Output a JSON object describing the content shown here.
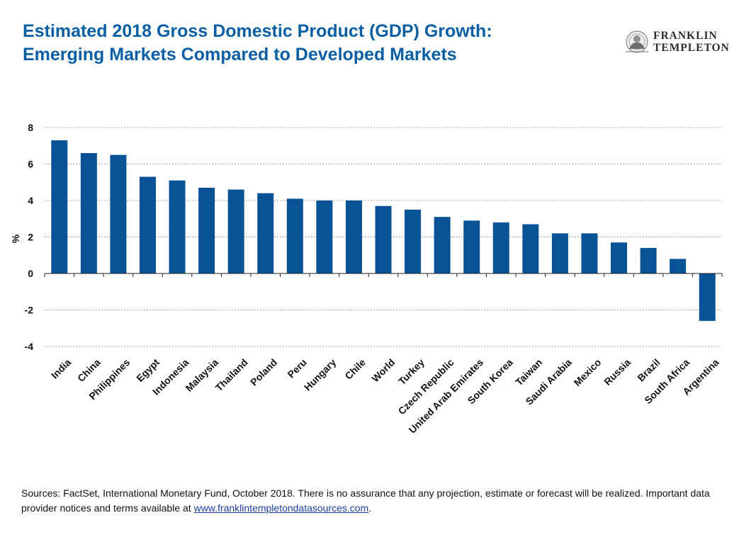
{
  "header": {
    "title_line1": "Estimated 2018 Gross Domestic Product (GDP) Growth:",
    "title_line2": "Emerging Markets Compared to Developed Markets",
    "logo_line1": "FRANKLIN",
    "logo_line2": "TEMPLETON"
  },
  "colors": {
    "title": "#0a5ea3",
    "bar": "#0a5296",
    "grid": "#808080",
    "link": "#1f3f9b"
  },
  "chart_data": {
    "type": "bar",
    "title": "",
    "xlabel": "",
    "ylabel": "%",
    "ylim": [
      -4,
      8
    ],
    "yticks": [
      8,
      6,
      4,
      2,
      0,
      -2,
      -4
    ],
    "grid": true,
    "legend": "none",
    "categories": [
      "India",
      "China",
      "Philippines",
      "Egypt",
      "Indonesia",
      "Malaysia",
      "Thailand",
      "Poland",
      "Peru",
      "Hungary",
      "Chile",
      "World",
      "Turkey",
      "Czech Republic",
      "United Arab Emirates",
      "South Korea",
      "Taiwan",
      "Saudi Arabia",
      "Mexico",
      "Russia",
      "Brazil",
      "South Africa",
      "Argentina"
    ],
    "values": [
      7.3,
      6.6,
      6.5,
      5.3,
      5.1,
      4.7,
      4.6,
      4.4,
      4.1,
      4.0,
      4.0,
      3.7,
      3.5,
      3.1,
      2.9,
      2.8,
      2.7,
      2.2,
      2.2,
      1.7,
      1.4,
      0.8,
      -2.6
    ]
  },
  "footer": {
    "text": "Sources: FactSet, International Monetary Fund, October 2018. There is no assurance that any projection, estimate or forecast will be realized. Important data provider notices and terms available at ",
    "link_text": "www.franklintempletondatasources.com",
    "suffix": "."
  }
}
